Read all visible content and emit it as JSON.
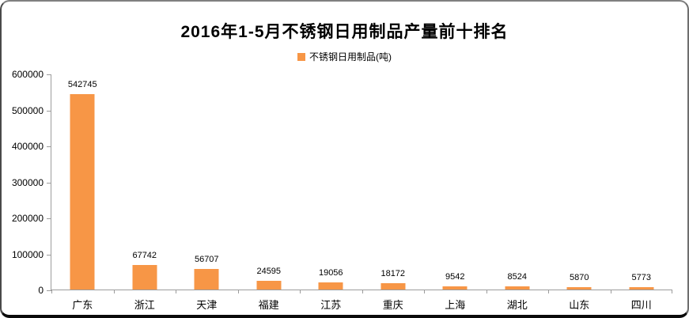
{
  "chart_data": {
    "type": "bar",
    "title": "2016年1-5月不锈钢日用制品产量前十排名",
    "legend": "不锈钢日用制品(吨)",
    "legend_position": "top",
    "categories": [
      "广东",
      "浙江",
      "天津",
      "福建",
      "江苏",
      "重庆",
      "上海",
      "湖北",
      "山东",
      "四川"
    ],
    "values": [
      542745,
      67742,
      56707,
      24595,
      19056,
      18172,
      9542,
      8524,
      5870,
      5773
    ],
    "xlabel": "",
    "ylabel": "",
    "ylim": [
      0,
      600000
    ],
    "ytick_step": 100000,
    "ytick_labels": [
      "0",
      "100000",
      "200000",
      "300000",
      "400000",
      "500000",
      "600000"
    ],
    "grid": false,
    "bar_color": "#F79646",
    "axis_color": "#9C9C9C",
    "text_color": "#000000",
    "background_color": "#FFFFFF"
  }
}
